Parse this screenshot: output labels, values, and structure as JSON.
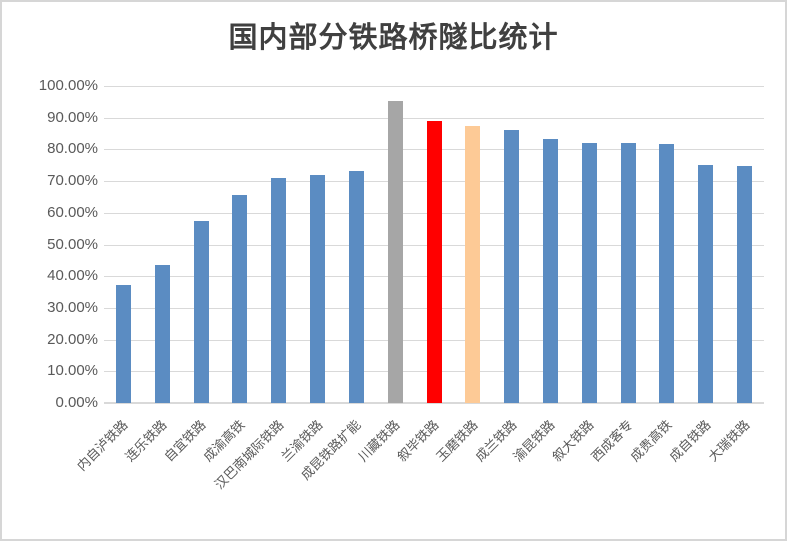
{
  "window": {
    "background": "#FFFFFF",
    "border_color": "#D6D6D6"
  },
  "chart_data": {
    "type": "bar",
    "title": "国内部分铁路桥隧比统计",
    "categories": [
      "内自泸铁路",
      "连乐铁路",
      "自宜铁路",
      "成渝高铁",
      "汉巴南城际铁路",
      "兰渝铁路",
      "成昆铁路扩能",
      "川藏铁路",
      "叙毕铁路",
      "玉磨铁路",
      "成兰铁路",
      "渝昆铁路",
      "叙大铁路",
      "西成客专",
      "成贵高铁",
      "成自铁路",
      "大瑞铁路"
    ],
    "values": [
      37.2,
      43.4,
      57.5,
      65.6,
      71.0,
      72.0,
      73.2,
      95.3,
      89.0,
      87.3,
      86.0,
      83.3,
      82.0,
      82.0,
      81.6,
      75.2,
      74.8
    ],
    "bar_colors": [
      "#5B8CC2",
      "#5B8CC2",
      "#5B8CC2",
      "#5B8CC2",
      "#5B8CC2",
      "#5B8CC2",
      "#5B8CC2",
      "#A6A6A6",
      "#FF0000",
      "#FDCA96",
      "#5B8CC2",
      "#5B8CC2",
      "#5B8CC2",
      "#5B8CC2",
      "#5B8CC2",
      "#5B8CC2",
      "#5B8CC2"
    ],
    "ylim": [
      0,
      100
    ],
    "ytick_labels": [
      "100.00%",
      "90.00%",
      "80.00%",
      "70.00%",
      "60.00%",
      "50.00%",
      "40.00%",
      "30.00%",
      "20.00%",
      "10.00%",
      "0.00%"
    ],
    "xlabel": "",
    "ylabel": "",
    "grid": true,
    "legend": "none",
    "colors": {
      "default_bar": "#5B8CC2",
      "highlight_gray_bar": "#A6A6A6",
      "highlight_red_bar": "#FF0000",
      "highlight_orange_bar": "#FDCA96",
      "gridline": "#D9D9D9",
      "axis_line": "#D9D9D9",
      "tick_text": "#595959",
      "title_text": "#404040"
    }
  }
}
